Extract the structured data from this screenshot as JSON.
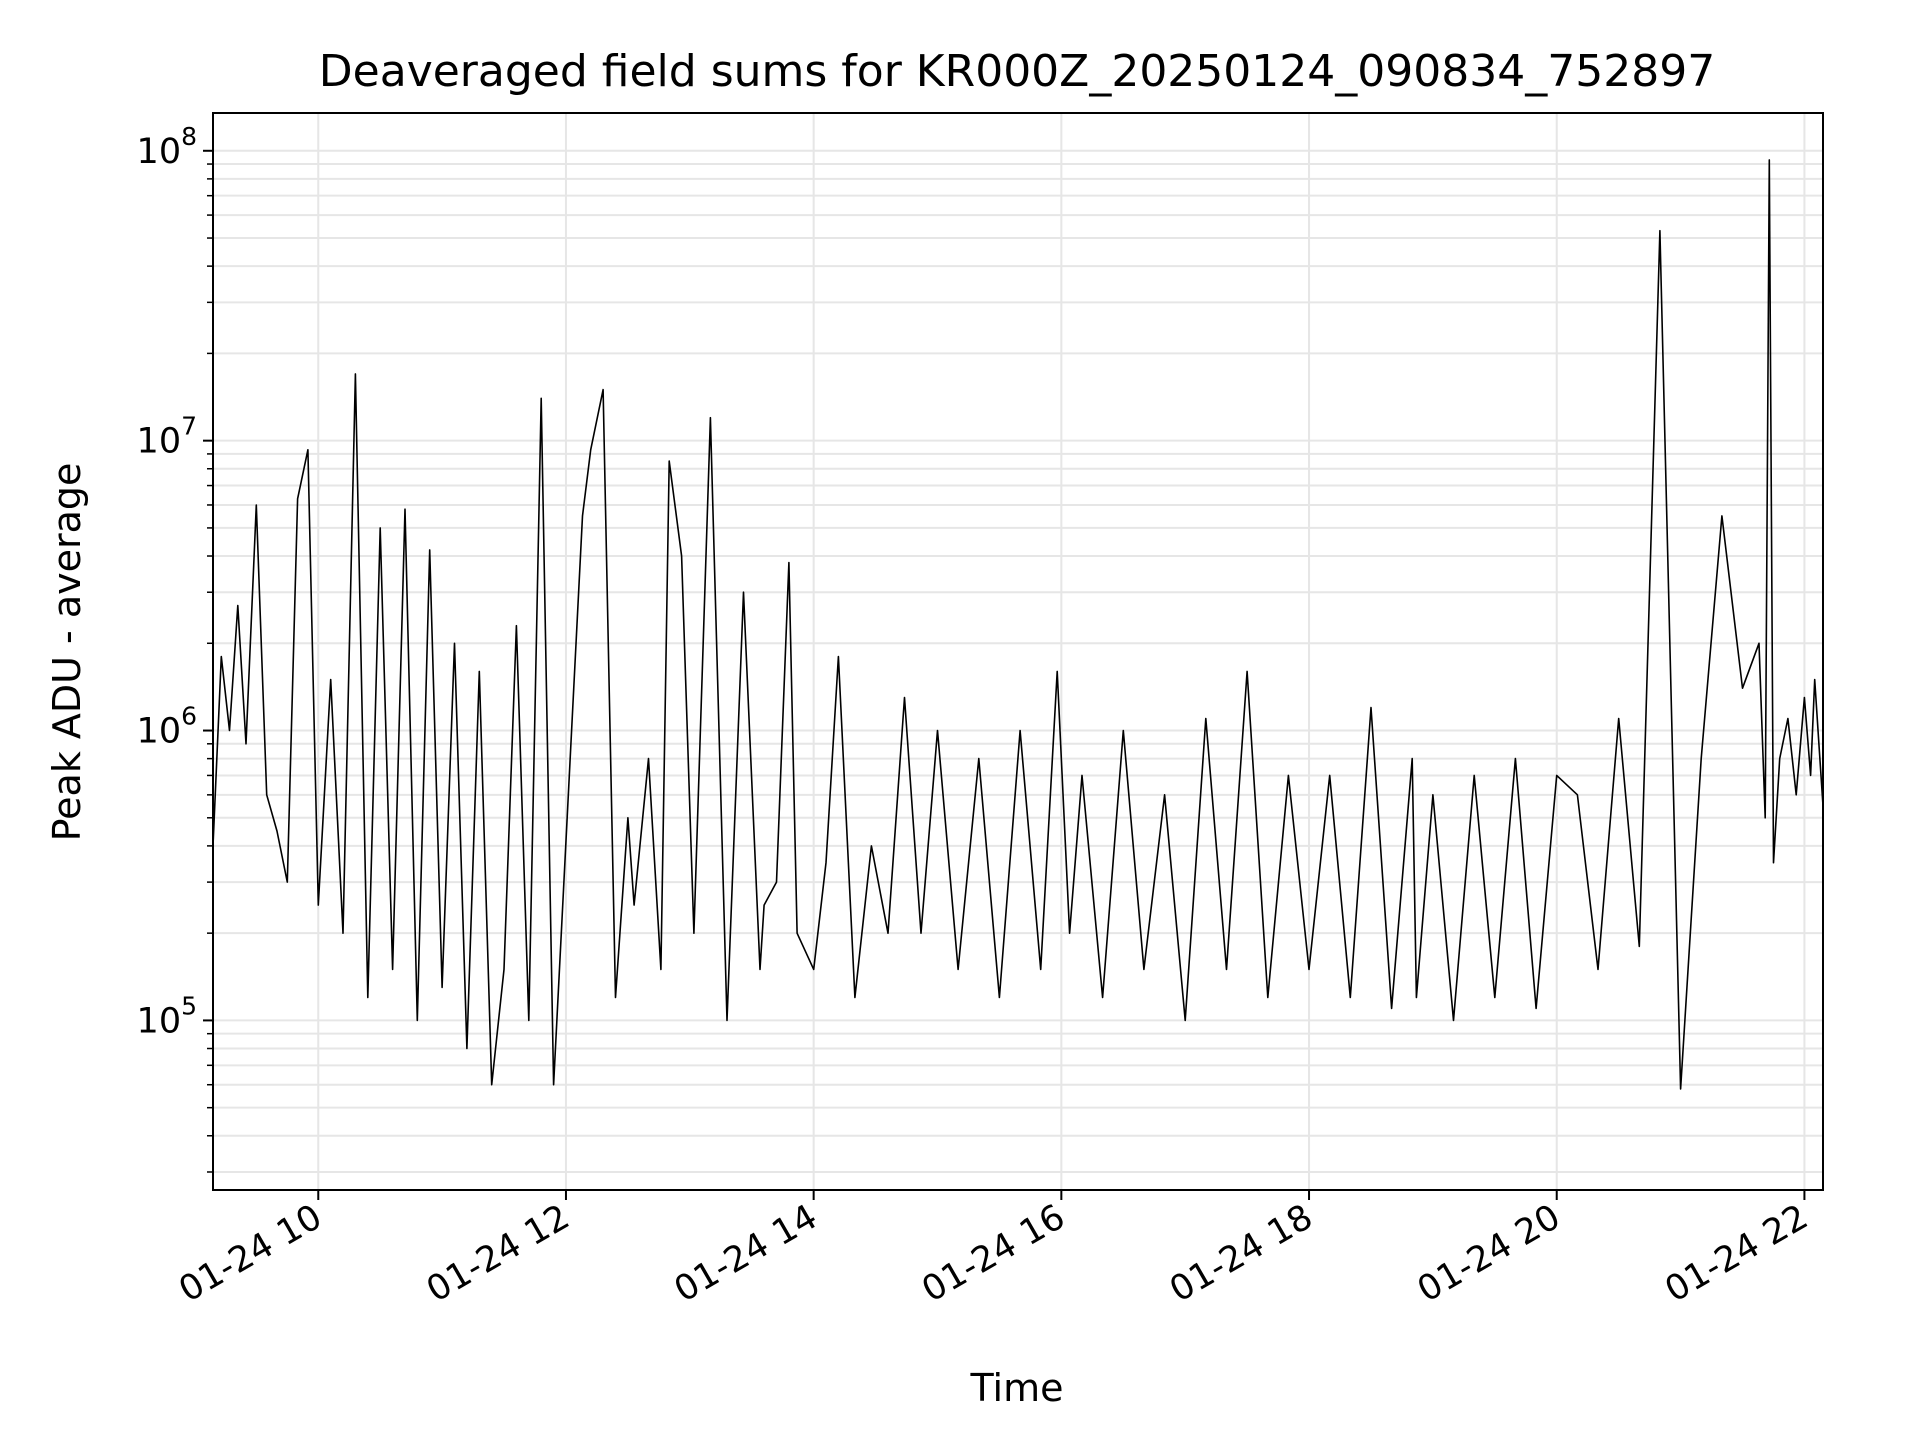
{
  "chart_data": {
    "type": "line",
    "title": "Deaveraged field sums for KR000Z_20250124_090834_752897",
    "xlabel": "Time",
    "ylabel": "Peak ADU - average",
    "xlim": [
      "01-24 09:09",
      "01-24 22:09"
    ],
    "ylim": [
      26000,
      135000000
    ],
    "yscale": "log",
    "grid": true,
    "x_ticks": [
      {
        "label": "01-24 10",
        "value": "01-24 10:00"
      },
      {
        "label": "01-24 12",
        "value": "01-24 12:00"
      },
      {
        "label": "01-24 14",
        "value": "01-24 14:00"
      },
      {
        "label": "01-24 16",
        "value": "01-24 16:00"
      },
      {
        "label": "01-24 18",
        "value": "01-24 18:00"
      },
      {
        "label": "01-24 20",
        "value": "01-24 20:00"
      },
      {
        "label": "01-24 22",
        "value": "01-24 22:00"
      }
    ],
    "y_ticks": [
      {
        "base": "10",
        "exp": "5",
        "value": 100000
      },
      {
        "base": "10",
        "exp": "6",
        "value": 1000000
      },
      {
        "base": "10",
        "exp": "7",
        "value": 10000000
      },
      {
        "base": "10",
        "exp": "8",
        "value": 100000000
      }
    ],
    "series": [
      {
        "color": "#000000",
        "x": [
          "01-24 09:09",
          "01-24 09:13",
          "01-24 09:17",
          "01-24 09:21",
          "01-24 09:25",
          "01-24 09:30",
          "01-24 09:35",
          "01-24 09:40",
          "01-24 09:45",
          "01-24 09:50",
          "01-24 09:55",
          "01-24 10:00",
          "01-24 10:06",
          "01-24 10:12",
          "01-24 10:18",
          "01-24 10:24",
          "01-24 10:30",
          "01-24 10:36",
          "01-24 10:42",
          "01-24 10:48",
          "01-24 10:54",
          "01-24 11:00",
          "01-24 11:06",
          "01-24 11:12",
          "01-24 11:18",
          "01-24 11:24",
          "01-24 11:30",
          "01-24 11:36",
          "01-24 11:42",
          "01-24 11:48",
          "01-24 11:54",
          "01-24 12:08",
          "01-24 12:12",
          "01-24 12:18",
          "01-24 12:24",
          "01-24 12:30",
          "01-24 12:33",
          "01-24 12:40",
          "01-24 12:46",
          "01-24 12:50",
          "01-24 12:56",
          "01-24 13:02",
          "01-24 13:10",
          "01-24 13:18",
          "01-24 13:26",
          "01-24 13:34",
          "01-24 13:36",
          "01-24 13:42",
          "01-24 13:48",
          "01-24 13:52",
          "01-24 14:00",
          "01-24 14:06",
          "01-24 14:12",
          "01-24 14:20",
          "01-24 14:28",
          "01-24 14:36",
          "01-24 14:44",
          "01-24 14:52",
          "01-24 15:00",
          "01-24 15:10",
          "01-24 15:20",
          "01-24 15:30",
          "01-24 15:40",
          "01-24 15:50",
          "01-24 15:58",
          "01-24 16:04",
          "01-24 16:10",
          "01-24 16:20",
          "01-24 16:30",
          "01-24 16:40",
          "01-24 16:50",
          "01-24 17:00",
          "01-24 17:10",
          "01-24 17:20",
          "01-24 17:30",
          "01-24 17:40",
          "01-24 17:50",
          "01-24 18:00",
          "01-24 18:10",
          "01-24 18:20",
          "01-24 18:30",
          "01-24 18:40",
          "01-24 18:50",
          "01-24 18:52",
          "01-24 19:00",
          "01-24 19:10",
          "01-24 19:20",
          "01-24 19:30",
          "01-24 19:40",
          "01-24 19:50",
          "01-24 20:00",
          "01-24 20:10",
          "01-24 20:20",
          "01-24 20:30",
          "01-24 20:40",
          "01-24 20:50",
          "01-24 21:00",
          "01-24 21:10",
          "01-24 21:20",
          "01-24 21:30",
          "01-24 21:38",
          "01-24 21:41",
          "01-24 21:43",
          "01-24 21:45",
          "01-24 21:48",
          "01-24 21:52",
          "01-24 21:56",
          "01-24 22:00",
          "01-24 22:03",
          "01-24 22:05",
          "01-24 22:07",
          "01-24 22:09"
        ],
        "y": [
          400000,
          1800000,
          1000000,
          2700000,
          900000,
          6000000,
          600000,
          450000,
          300000,
          6300000,
          9300000,
          250000,
          1500000,
          200000,
          17000000,
          120000,
          5000000,
          150000,
          5800000,
          100000,
          4200000,
          130000,
          2000000,
          80000,
          1600000,
          60000,
          150000,
          2300000,
          100000,
          14000000,
          60000,
          5500000,
          9300000,
          15000000,
          120000,
          500000,
          250000,
          800000,
          150000,
          8500000,
          4000000,
          200000,
          12000000,
          100000,
          3000000,
          150000,
          250000,
          300000,
          3800000,
          200000,
          150000,
          350000,
          1800000,
          120000,
          400000,
          200000,
          1300000,
          200000,
          1000000,
          150000,
          800000,
          120000,
          1000000,
          150000,
          1600000,
          200000,
          700000,
          120000,
          1000000,
          150000,
          600000,
          100000,
          1100000,
          150000,
          1600000,
          120000,
          700000,
          150000,
          700000,
          120000,
          1200000,
          110000,
          800000,
          120000,
          600000,
          100000,
          700000,
          120000,
          800000,
          110000,
          700000,
          600000,
          150000,
          1100000,
          180000,
          53000000,
          58000,
          800000,
          5500000,
          1400000,
          2000000,
          500000,
          93000000,
          350000,
          800000,
          1100000,
          600000,
          1300000,
          700000,
          1500000,
          900000,
          550000
        ]
      }
    ]
  }
}
